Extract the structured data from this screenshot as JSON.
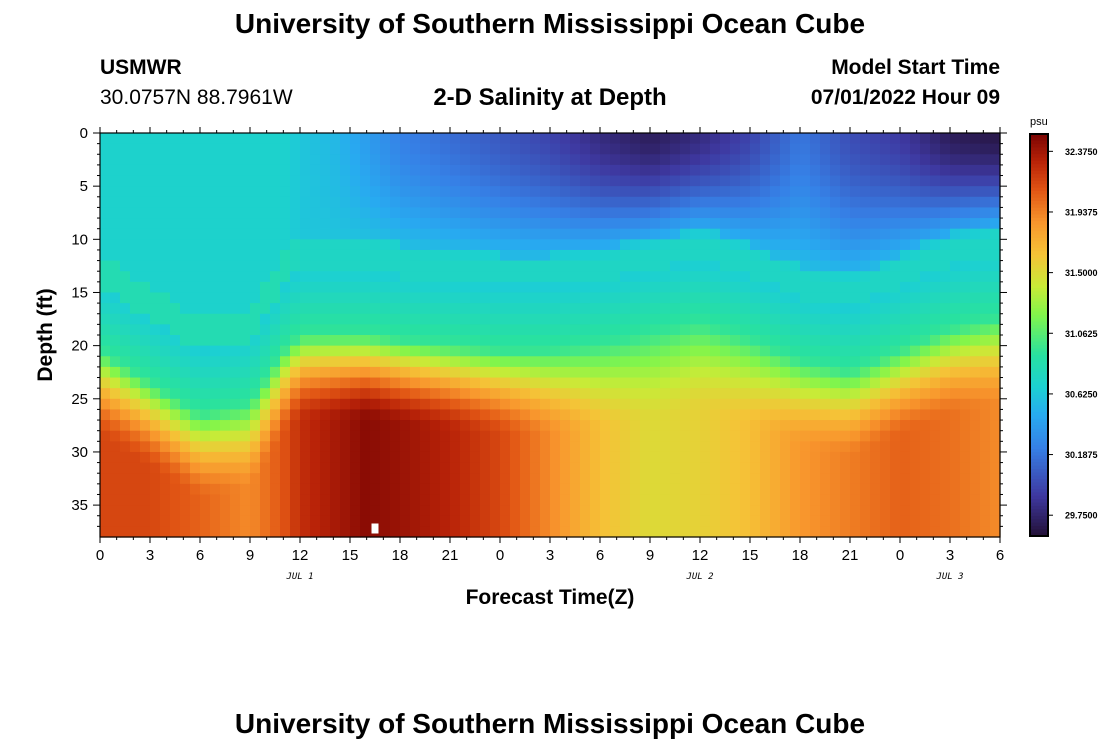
{
  "header": {
    "title": "University of Southern Mississippi Ocean Cube",
    "station_id": "USMWR",
    "coordinates": "30.0757N  88.7961W",
    "model_start_label": "Model Start Time",
    "model_start_value": "07/01/2022 Hour 09"
  },
  "footer": {
    "title": "University of Southern Mississippi Ocean Cube"
  },
  "chart_data": {
    "type": "heatmap",
    "title": "2-D Salinity at Depth",
    "xlabel": "Forecast Time(Z)",
    "ylabel": "Depth (ft)",
    "x_range_hours": [
      0,
      54
    ],
    "y_range_ft": [
      0,
      38
    ],
    "x_tick_labels": [
      "0",
      "3",
      "6",
      "9",
      "12",
      "15",
      "18",
      "21",
      "0",
      "3",
      "6",
      "9",
      "12",
      "15",
      "18",
      "21",
      "0",
      "3",
      "6"
    ],
    "y_ticks": [
      0,
      5,
      10,
      15,
      20,
      25,
      30,
      35
    ],
    "date_labels": [
      {
        "text": "JUL 1",
        "hour": 12
      },
      {
        "text": "JUL 2",
        "hour": 36
      },
      {
        "text": "JUL 3",
        "hour": 51
      }
    ],
    "colorbar": {
      "unit": "psu",
      "range": [
        29.6,
        32.5
      ],
      "tick_labels": [
        "32.3750",
        "31.9375",
        "31.5000",
        "31.0625",
        "30.6250",
        "30.1875",
        "29.7500"
      ],
      "tick_values": [
        32.375,
        31.9375,
        31.5,
        31.0625,
        30.625,
        30.1875,
        29.75
      ]
    },
    "profile_hours": [
      0,
      3,
      6,
      9,
      11,
      12,
      14,
      16,
      18,
      21,
      24,
      27,
      30,
      33,
      36,
      39,
      42,
      45,
      48,
      51,
      54
    ],
    "surface_salinity": [
      30.7,
      30.7,
      30.7,
      30.7,
      30.7,
      30.62,
      30.55,
      30.4,
      30.25,
      30.15,
      30.05,
      29.95,
      29.8,
      29.7,
      29.8,
      29.95,
      30.2,
      30.0,
      29.9,
      29.7,
      29.65
    ],
    "halocline_depth_ft": [
      20.5,
      23.5,
      26.5,
      25.5,
      20.5,
      19.0,
      19.0,
      19.0,
      19.5,
      20.0,
      20.5,
      20.5,
      20.0,
      19.0,
      18.0,
      19.5,
      21.5,
      22.5,
      20.5,
      18.5,
      17.5
    ],
    "bottom_salinity": [
      32.15,
      32.15,
      32.05,
      31.9,
      32.1,
      32.25,
      32.35,
      32.45,
      32.4,
      32.3,
      32.15,
      31.9,
      31.65,
      31.5,
      31.55,
      31.65,
      31.85,
      31.95,
      32.05,
      32.0,
      31.9
    ],
    "marker": {
      "hour": 16.5,
      "depth_ft": 37.2
    }
  }
}
